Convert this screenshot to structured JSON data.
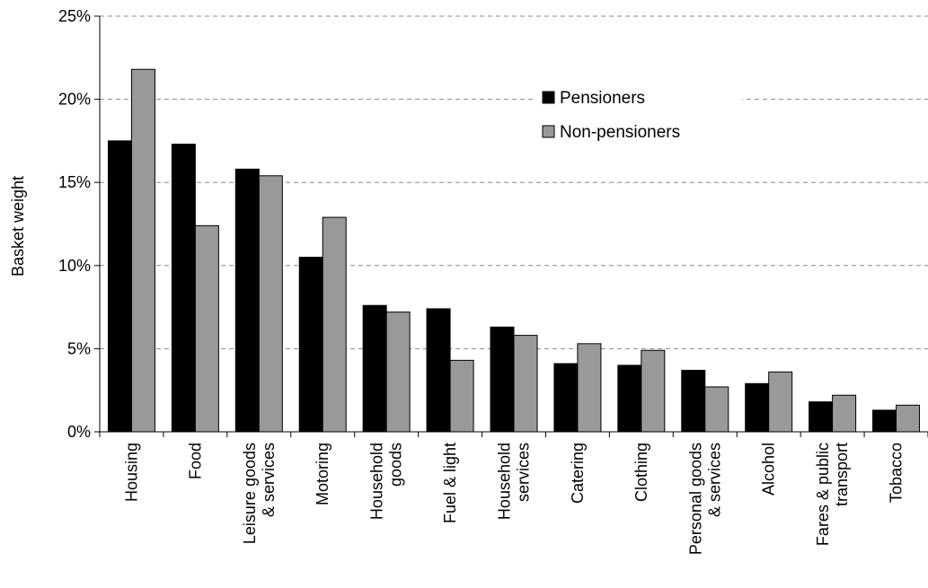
{
  "chart_data": {
    "type": "bar",
    "title": "",
    "xlabel": "",
    "ylabel": "Basket weight",
    "ylim": [
      0,
      25
    ],
    "yticks": [
      0,
      5,
      10,
      15,
      20,
      25
    ],
    "ytick_labels": [
      "0%",
      "5%",
      "10%",
      "15%",
      "20%",
      "25%"
    ],
    "grid": "horizontal dashed",
    "legend_position": "top-right",
    "categories": [
      [
        "Housing"
      ],
      [
        "Food"
      ],
      [
        "Leisure goods",
        "& services"
      ],
      [
        "Motoring"
      ],
      [
        "Household",
        "goods"
      ],
      [
        "Fuel & light"
      ],
      [
        "Household",
        "services"
      ],
      [
        "Catering"
      ],
      [
        "Clothing"
      ],
      [
        "Personal goods",
        "& services"
      ],
      [
        "Alcohol"
      ],
      [
        "Fares & public",
        "transport"
      ],
      [
        "Tobacco"
      ]
    ],
    "series": [
      {
        "name": "Pensioners",
        "color": "#000000",
        "values": [
          17.5,
          17.3,
          15.8,
          10.5,
          7.6,
          7.4,
          6.3,
          4.1,
          4.0,
          3.7,
          2.9,
          1.8,
          1.3
        ]
      },
      {
        "name": "Non-pensioners",
        "color": "#999999",
        "values": [
          21.8,
          12.4,
          15.4,
          12.9,
          7.2,
          4.3,
          5.8,
          5.3,
          4.9,
          2.7,
          3.6,
          2.2,
          1.6
        ]
      }
    ]
  }
}
